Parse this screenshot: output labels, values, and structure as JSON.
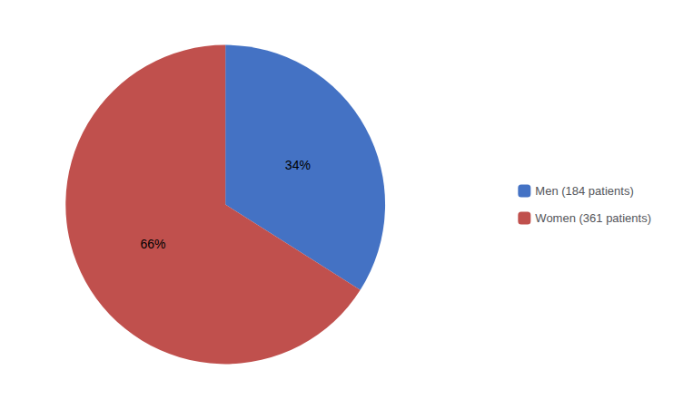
{
  "chart_data": {
    "type": "pie",
    "categories": [
      "Men (184 patients)",
      "Women (361 patients)"
    ],
    "values": [
      34,
      66
    ],
    "value_labels": [
      "34%",
      "66%"
    ],
    "colors": [
      "#4472C4",
      "#C0504D"
    ],
    "data_labels": true,
    "legend": "right"
  }
}
